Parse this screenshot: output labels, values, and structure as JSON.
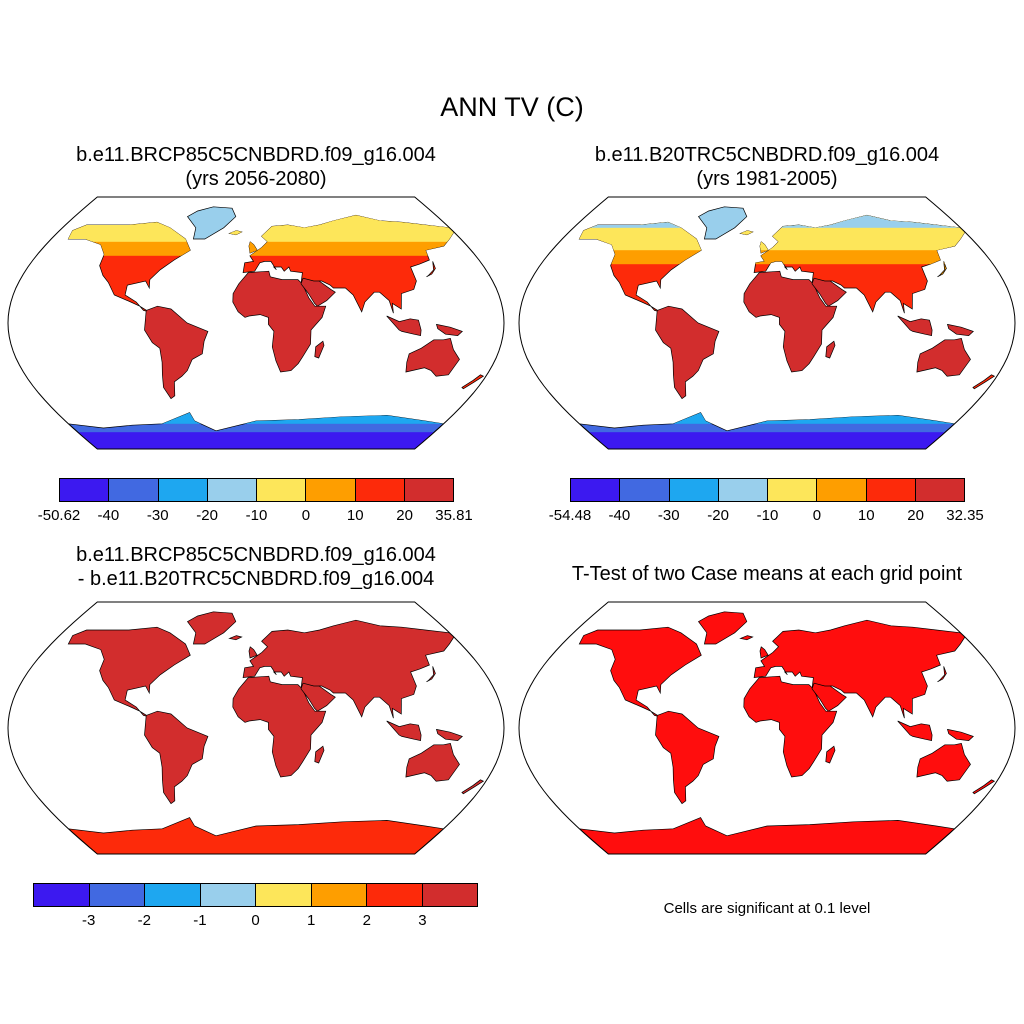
{
  "title": "ANN TV (C)",
  "panels": {
    "p1": {
      "title_line1": "b.e11.BRCP85C5CNBDRD.f09_g16.004",
      "title_line2": "(yrs 2056-2080)"
    },
    "p2": {
      "title_line1": "b.e11.B20TRC5CNBDRD.f09_g16.004",
      "title_line2": "(yrs 1981-2005)"
    },
    "p3": {
      "title_line1": "b.e11.BRCP85C5CNBDRD.f09_g16.004",
      "title_line2": "- b.e11.B20TRC5CNBDRD.f09_g16.004"
    },
    "p4": {
      "title_line1": "T-Test of two Case means at each grid point",
      "note": "Cells are significant at 0.1 level"
    }
  },
  "colorbars": {
    "cb1": {
      "colors": [
        "#3c19f0",
        "#4169e1",
        "#1ea7f0",
        "#99cfec",
        "#fde65a",
        "#fe9e00",
        "#fd2a0a",
        "#d22d2d"
      ],
      "labels": [
        "-50.62",
        "-40",
        "-30",
        "-20",
        "-10",
        "0",
        "10",
        "20",
        "35.81"
      ]
    },
    "cb2": {
      "colors": [
        "#3c19f0",
        "#4169e1",
        "#1ea7f0",
        "#99cfec",
        "#fde65a",
        "#fe9e00",
        "#fd2a0a",
        "#d22d2d"
      ],
      "labels": [
        "-54.48",
        "-40",
        "-30",
        "-20",
        "-10",
        "0",
        "10",
        "20",
        "32.35"
      ]
    },
    "cb3": {
      "colors": [
        "#3c19f0",
        "#4169e1",
        "#1ea7f0",
        "#99cfec",
        "#fde65a",
        "#fe9e00",
        "#fd2a0a",
        "#d22d2d"
      ],
      "labels": [
        "-3",
        "-2",
        "-1",
        "0",
        "1",
        "2",
        "3"
      ]
    }
  }
}
